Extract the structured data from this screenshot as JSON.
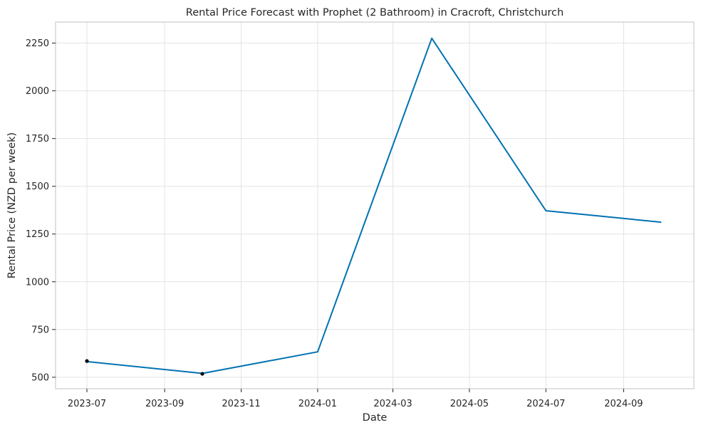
{
  "chart_data": {
    "type": "line",
    "title": "Rental Price Forecast with Prophet (2 Bathroom) in Cracroft, Christchurch",
    "xlabel": "Date",
    "ylabel": "Rental Price (NZD per week)",
    "x_ticks": [
      "2023-07",
      "2023-09",
      "2023-11",
      "2024-01",
      "2024-03",
      "2024-05",
      "2024-07",
      "2024-09"
    ],
    "y_ticks": [
      500,
      750,
      1000,
      1250,
      1500,
      1750,
      2000,
      2250
    ],
    "xlim": [
      "2023-06-06",
      "2024-10-27"
    ],
    "ylim": [
      440,
      2360
    ],
    "grid": true,
    "series": [
      {
        "name": "",
        "kind": "forecast-line",
        "color": "#0072b2",
        "x": [
          "2023-07-01",
          "2023-10-01",
          "2024-01-01",
          "2024-04-01",
          "2024-07-01",
          "2024-10-01"
        ],
        "y": [
          582,
          520,
          633,
          2275,
          1372,
          1312
        ]
      },
      {
        "name": "",
        "kind": "observed-points",
        "color": "#000000",
        "x": [
          "2023-07-01",
          "2023-10-01"
        ],
        "y": [
          585,
          518
        ]
      }
    ]
  }
}
